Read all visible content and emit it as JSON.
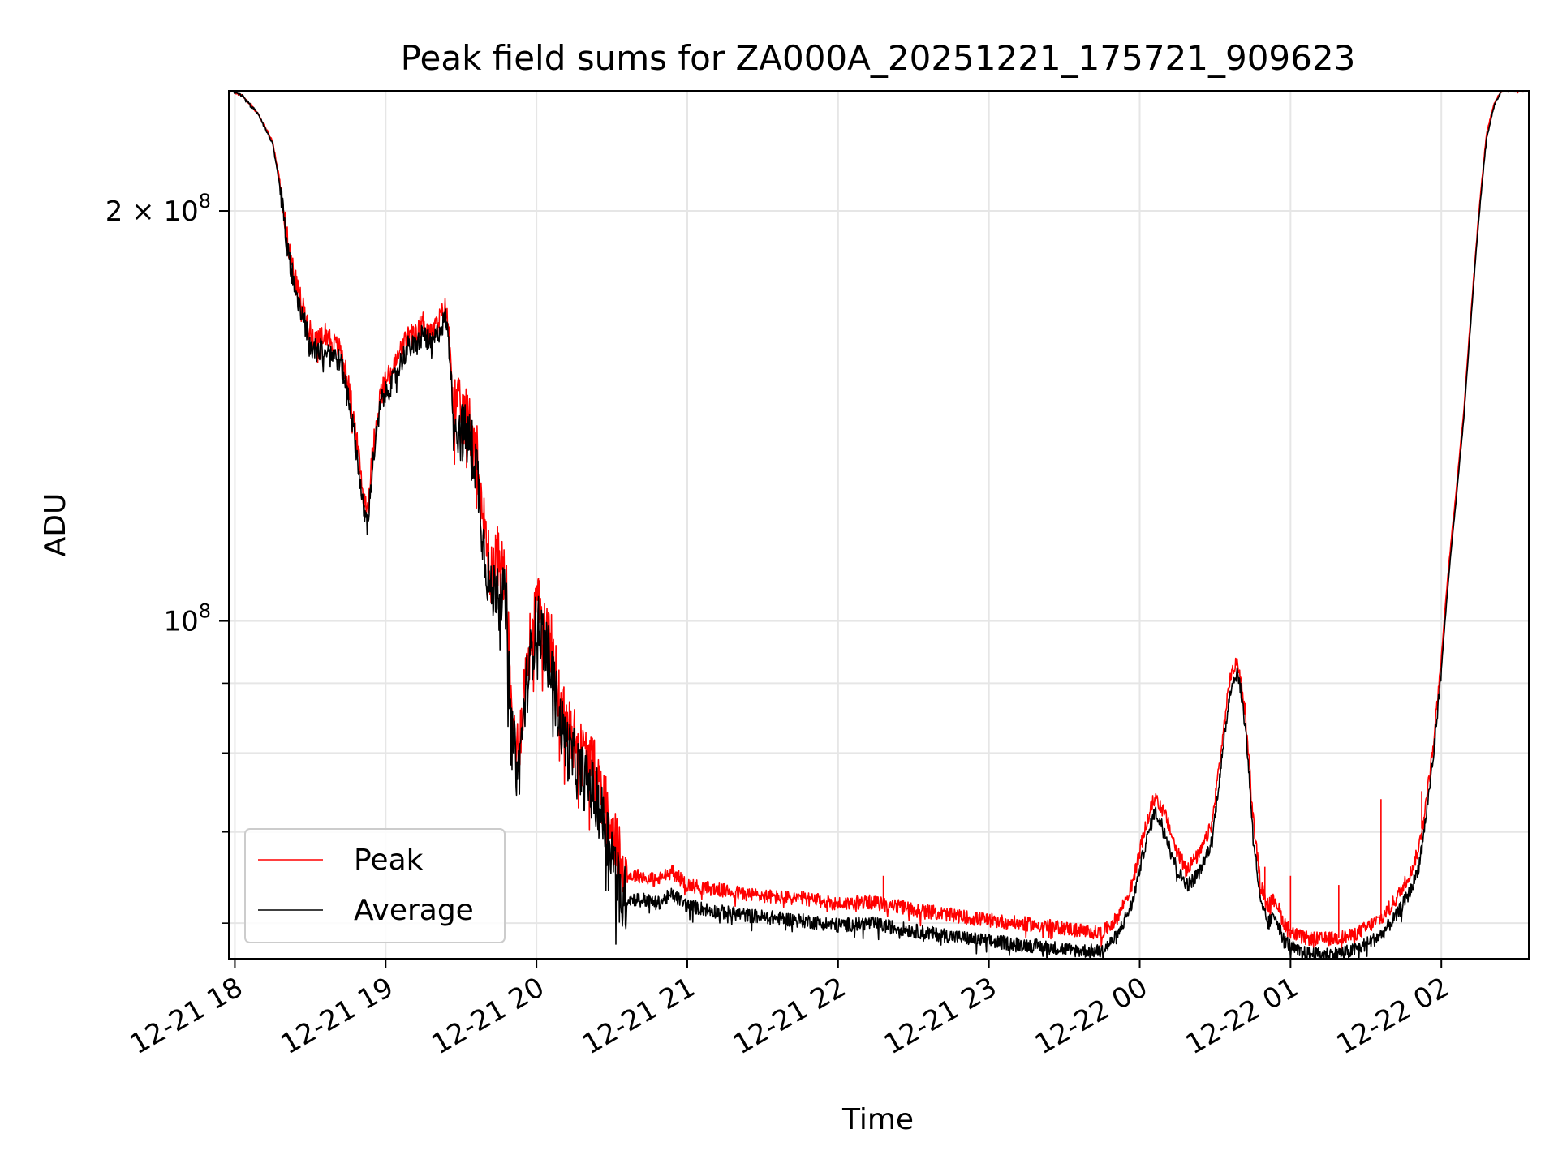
{
  "chart_data": {
    "type": "line",
    "title": "Peak field sums for ZA000A_20251221_175721_909623",
    "xlabel": "Time",
    "ylabel": "ADU",
    "y_scale": "log",
    "ylim": [
      56500000,
      245000000
    ],
    "x_range_hours": [
      17.96,
      26.58
    ],
    "grid": true,
    "legend_location": "lower-left",
    "x_ticks": [
      {
        "hour": 18,
        "label": "12-21 18"
      },
      {
        "hour": 19,
        "label": "12-21 19"
      },
      {
        "hour": 20,
        "label": "12-21 20"
      },
      {
        "hour": 21,
        "label": "12-21 21"
      },
      {
        "hour": 22,
        "label": "12-21 22"
      },
      {
        "hour": 23,
        "label": "12-21 23"
      },
      {
        "hour": 24,
        "label": "12-22 00"
      },
      {
        "hour": 25,
        "label": "12-22 01"
      },
      {
        "hour": 26,
        "label": "12-22 02"
      }
    ],
    "y_major_ticks": [
      {
        "value": 100000000,
        "label": "10",
        "exponent": "8",
        "prefix": ""
      },
      {
        "value": 200000000,
        "label": "10",
        "exponent": "8",
        "prefix": "2 × "
      }
    ],
    "y_minor_ticks": [
      60000000,
      70000000,
      80000000,
      90000000
    ],
    "series": [
      {
        "name": "Peak",
        "color": "#ff0000",
        "points": [
          [
            17.97,
            245000000
          ],
          [
            18.05,
            243000000
          ],
          [
            18.15,
            236000000
          ],
          [
            18.25,
            225000000
          ],
          [
            18.3,
            210000000
          ],
          [
            18.35,
            190000000
          ],
          [
            18.4,
            178000000
          ],
          [
            18.45,
            170000000
          ],
          [
            18.5,
            163000000
          ],
          [
            18.55,
            160000000
          ],
          [
            18.6,
            163000000
          ],
          [
            18.65,
            160000000
          ],
          [
            18.7,
            158000000
          ],
          [
            18.75,
            150000000
          ],
          [
            18.8,
            138000000
          ],
          [
            18.85,
            124000000
          ],
          [
            18.88,
            121000000
          ],
          [
            18.92,
            135000000
          ],
          [
            18.97,
            148000000
          ],
          [
            19.05,
            153000000
          ],
          [
            19.1,
            158000000
          ],
          [
            19.15,
            162000000
          ],
          [
            19.2,
            162000000
          ],
          [
            19.25,
            166000000
          ],
          [
            19.3,
            162000000
          ],
          [
            19.35,
            166000000
          ],
          [
            19.4,
            170000000
          ],
          [
            19.42,
            162000000
          ],
          [
            19.45,
            145000000
          ],
          [
            19.5,
            142000000
          ],
          [
            19.55,
            140000000
          ],
          [
            19.6,
            135000000
          ],
          [
            19.65,
            118000000
          ],
          [
            19.7,
            108000000
          ],
          [
            19.75,
            112000000
          ],
          [
            19.8,
            106000000
          ],
          [
            19.83,
            86000000
          ],
          [
            19.88,
            80000000
          ],
          [
            19.93,
            92000000
          ],
          [
            20.0,
            103000000
          ],
          [
            20.05,
            100000000
          ],
          [
            20.1,
            96000000
          ],
          [
            20.15,
            88000000
          ],
          [
            20.2,
            84000000
          ],
          [
            20.25,
            82000000
          ],
          [
            20.3,
            80000000
          ],
          [
            20.35,
            79000000
          ],
          [
            20.4,
            77000000
          ],
          [
            20.45,
            74000000
          ],
          [
            20.5,
            71000000
          ],
          [
            20.55,
            67000000
          ],
          [
            20.6,
            65000000
          ],
          [
            20.7,
            65000000
          ],
          [
            20.8,
            64500000
          ],
          [
            20.9,
            65500000
          ],
          [
            21.0,
            64000000
          ],
          [
            21.2,
            63500000
          ],
          [
            21.4,
            63000000
          ],
          [
            21.6,
            62700000
          ],
          [
            21.8,
            62500000
          ],
          [
            22.0,
            62000000
          ],
          [
            22.2,
            62200000
          ],
          [
            22.4,
            61700000
          ],
          [
            22.6,
            61200000
          ],
          [
            22.8,
            60700000
          ],
          [
            23.0,
            60300000
          ],
          [
            23.2,
            60000000
          ],
          [
            23.4,
            59700000
          ],
          [
            23.6,
            59300000
          ],
          [
            23.75,
            59000000
          ],
          [
            23.85,
            60500000
          ],
          [
            23.95,
            64000000
          ],
          [
            24.03,
            70000000
          ],
          [
            24.1,
            74500000
          ],
          [
            24.17,
            72000000
          ],
          [
            24.25,
            67500000
          ],
          [
            24.32,
            66000000
          ],
          [
            24.4,
            67500000
          ],
          [
            24.48,
            71000000
          ],
          [
            24.55,
            82000000
          ],
          [
            24.6,
            91000000
          ],
          [
            24.65,
            93500000
          ],
          [
            24.7,
            86000000
          ],
          [
            24.75,
            72000000
          ],
          [
            24.8,
            64000000
          ],
          [
            24.85,
            62000000
          ],
          [
            24.9,
            62500000
          ],
          [
            24.95,
            60200000
          ],
          [
            25.0,
            59200000
          ],
          [
            25.05,
            58700000
          ],
          [
            25.1,
            58500000
          ],
          [
            25.2,
            58400000
          ],
          [
            25.3,
            58500000
          ],
          [
            25.4,
            58700000
          ],
          [
            25.5,
            59500000
          ],
          [
            25.6,
            60500000
          ],
          [
            25.7,
            62500000
          ],
          [
            25.8,
            65500000
          ],
          [
            25.85,
            68000000
          ],
          [
            25.9,
            74000000
          ],
          [
            25.95,
            82000000
          ],
          [
            26.0,
            94000000
          ],
          [
            26.05,
            110000000
          ],
          [
            26.1,
            125000000
          ],
          [
            26.15,
            143000000
          ],
          [
            26.2,
            170000000
          ],
          [
            26.25,
            200000000
          ],
          [
            26.3,
            228000000
          ],
          [
            26.35,
            240000000
          ],
          [
            26.4,
            245000000
          ],
          [
            26.58,
            245000000
          ]
        ]
      },
      {
        "name": "Average",
        "color": "#000000",
        "points": [
          [
            17.97,
            245000000
          ],
          [
            18.05,
            243000000
          ],
          [
            18.15,
            236000000
          ],
          [
            18.25,
            224000000
          ],
          [
            18.3,
            208000000
          ],
          [
            18.35,
            187000000
          ],
          [
            18.4,
            175000000
          ],
          [
            18.45,
            167000000
          ],
          [
            18.5,
            160000000
          ],
          [
            18.55,
            157000000
          ],
          [
            18.6,
            160000000
          ],
          [
            18.65,
            157000000
          ],
          [
            18.7,
            155000000
          ],
          [
            18.75,
            147000000
          ],
          [
            18.8,
            135000000
          ],
          [
            18.85,
            121000000
          ],
          [
            18.88,
            118000000
          ],
          [
            18.92,
            132000000
          ],
          [
            18.97,
            145000000
          ],
          [
            19.05,
            150000000
          ],
          [
            19.1,
            155000000
          ],
          [
            19.15,
            159000000
          ],
          [
            19.2,
            159000000
          ],
          [
            19.25,
            163000000
          ],
          [
            19.3,
            159000000
          ],
          [
            19.35,
            163000000
          ],
          [
            19.4,
            167000000
          ],
          [
            19.42,
            159000000
          ],
          [
            19.45,
            141000000
          ],
          [
            19.5,
            138000000
          ],
          [
            19.55,
            136000000
          ],
          [
            19.6,
            131000000
          ],
          [
            19.65,
            114000000
          ],
          [
            19.7,
            104000000
          ],
          [
            19.75,
            108000000
          ],
          [
            19.8,
            102000000
          ],
          [
            19.83,
            83000000
          ],
          [
            19.88,
            77000000
          ],
          [
            19.93,
            89000000
          ],
          [
            20.0,
            100000000
          ],
          [
            20.05,
            97000000
          ],
          [
            20.1,
            92000000
          ],
          [
            20.15,
            85000000
          ],
          [
            20.2,
            81000000
          ],
          [
            20.25,
            79000000
          ],
          [
            20.3,
            77000000
          ],
          [
            20.35,
            76000000
          ],
          [
            20.4,
            74000000
          ],
          [
            20.45,
            71000000
          ],
          [
            20.5,
            68000000
          ],
          [
            20.55,
            63500000
          ],
          [
            20.6,
            62500000
          ],
          [
            20.7,
            62500000
          ],
          [
            20.8,
            62000000
          ],
          [
            20.9,
            63000000
          ],
          [
            21.0,
            61800000
          ],
          [
            21.2,
            61200000
          ],
          [
            21.4,
            60800000
          ],
          [
            21.6,
            60500000
          ],
          [
            21.8,
            60200000
          ],
          [
            22.0,
            59800000
          ],
          [
            22.2,
            60000000
          ],
          [
            22.4,
            59500000
          ],
          [
            22.6,
            59000000
          ],
          [
            22.8,
            58600000
          ],
          [
            23.0,
            58200000
          ],
          [
            23.2,
            57900000
          ],
          [
            23.4,
            57600000
          ],
          [
            23.6,
            57300000
          ],
          [
            23.75,
            57200000
          ],
          [
            23.85,
            58700000
          ],
          [
            23.95,
            62000000
          ],
          [
            24.03,
            68000000
          ],
          [
            24.1,
            72500000
          ],
          [
            24.17,
            70000000
          ],
          [
            24.25,
            65500000
          ],
          [
            24.32,
            64000000
          ],
          [
            24.4,
            65500000
          ],
          [
            24.48,
            69000000
          ],
          [
            24.55,
            80000000
          ],
          [
            24.6,
            89000000
          ],
          [
            24.65,
            92000000
          ],
          [
            24.7,
            84000000
          ],
          [
            24.75,
            70000000
          ],
          [
            24.8,
            62000000
          ],
          [
            24.85,
            60000000
          ],
          [
            24.9,
            60800000
          ],
          [
            24.95,
            58500000
          ],
          [
            25.0,
            57700000
          ],
          [
            25.05,
            57200000
          ],
          [
            25.1,
            57000000
          ],
          [
            25.2,
            56900000
          ],
          [
            25.3,
            57000000
          ],
          [
            25.4,
            57200000
          ],
          [
            25.5,
            57900000
          ],
          [
            25.6,
            58800000
          ],
          [
            25.7,
            60700000
          ],
          [
            25.8,
            63500000
          ],
          [
            25.85,
            66000000
          ],
          [
            25.9,
            72000000
          ],
          [
            25.95,
            80000000
          ],
          [
            26.0,
            92000000
          ],
          [
            26.05,
            108000000
          ],
          [
            26.1,
            123000000
          ],
          [
            26.15,
            141000000
          ],
          [
            26.2,
            168000000
          ],
          [
            26.25,
            198000000
          ],
          [
            26.3,
            226000000
          ],
          [
            26.35,
            239000000
          ],
          [
            26.4,
            245000000
          ],
          [
            26.58,
            245000000
          ]
        ]
      }
    ],
    "spikes": [
      {
        "series": "Peak",
        "hour": 22.3,
        "value": 65000000
      },
      {
        "series": "Peak",
        "hour": 24.83,
        "value": 66000000
      },
      {
        "series": "Peak",
        "hour": 25.0,
        "value": 65000000
      },
      {
        "series": "Peak",
        "hour": 25.32,
        "value": 64000000
      },
      {
        "series": "Peak",
        "hour": 25.6,
        "value": 74000000
      },
      {
        "series": "Peak",
        "hour": 25.87,
        "value": 75000000
      }
    ]
  }
}
